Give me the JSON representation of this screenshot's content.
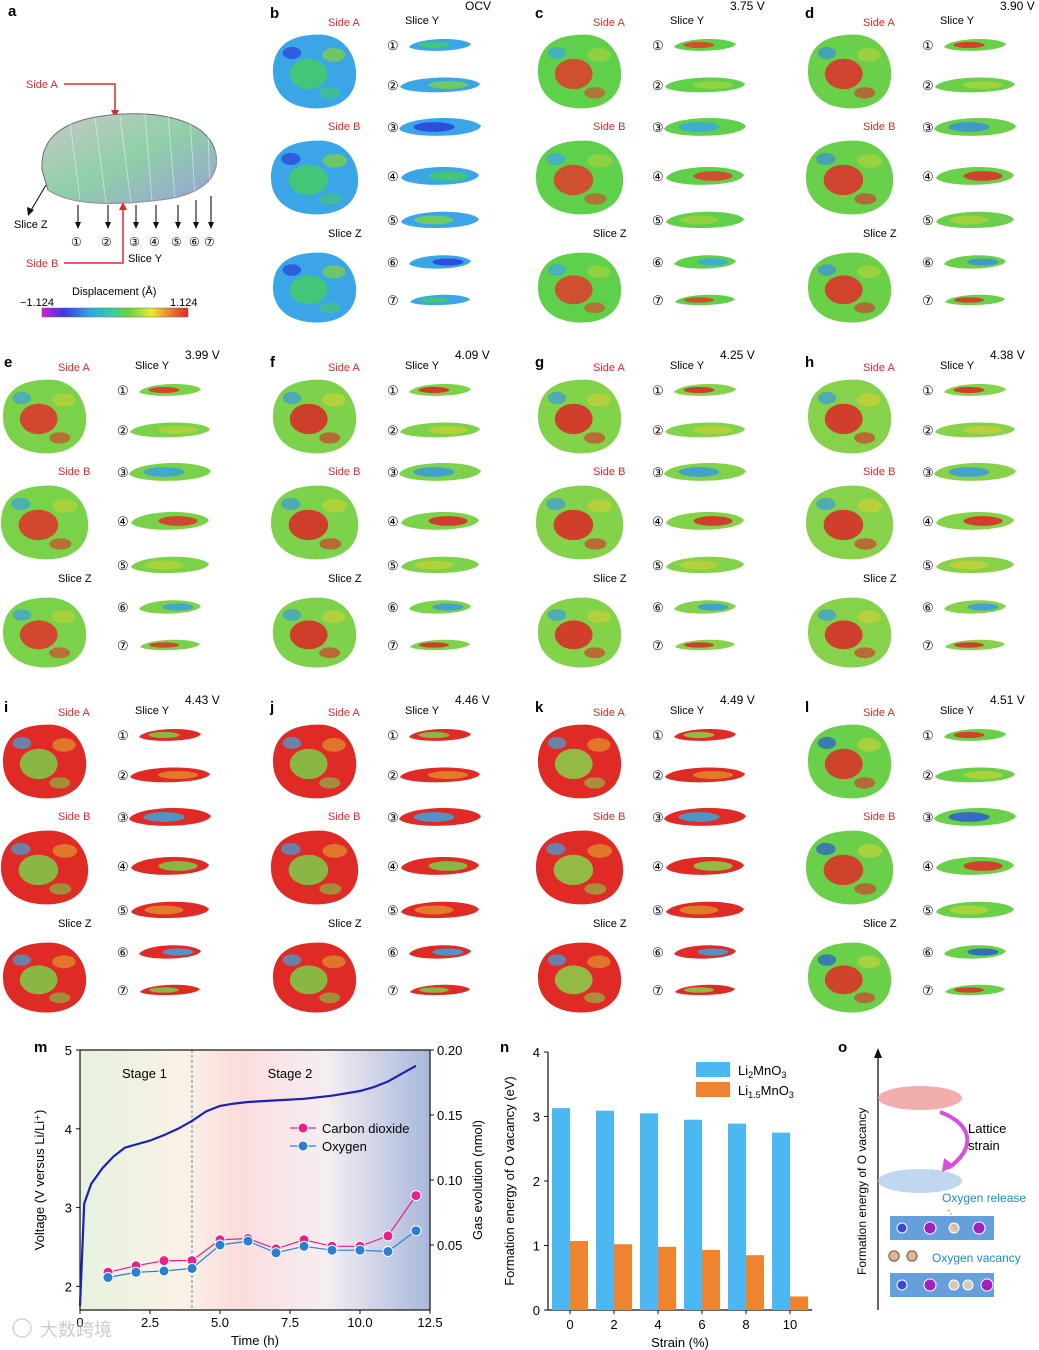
{
  "panel_a": {
    "letter": "a",
    "side_a": "Side A",
    "side_b": "Side B",
    "slice_z": "Slice Z",
    "slice_y": "Slice Y",
    "slice_numbers": [
      "①",
      "②",
      "③",
      "④",
      "⑤",
      "⑥",
      "⑦"
    ],
    "colorbar_title": "Displacement (Å)",
    "colorbar_min": "−1.124",
    "colorbar_max": "1.124",
    "colorbar_colors": [
      "#d81cd8",
      "#3a3adf",
      "#2fa3e8",
      "#35d0a0",
      "#6bd63a",
      "#e8e83a",
      "#f07a2a",
      "#e02a2a"
    ]
  },
  "panels": [
    {
      "letter": "b",
      "voltage": "OCV",
      "side_a": "Side A",
      "side_b": "Side B",
      "slice_z": "Slice Z",
      "slice_y": "Slice Y",
      "scheme": [
        "#3aa6e8",
        "#44cc66",
        "#7ad04a",
        "#2a40d8"
      ]
    },
    {
      "letter": "c",
      "voltage": "3.75 V",
      "side_a": "Side A",
      "side_b": "Side B",
      "slice_z": "Slice Z",
      "slice_y": "Slice Y",
      "scheme": [
        "#5fd04a",
        "#e23a2a",
        "#9ad23e",
        "#3aa6e8"
      ]
    },
    {
      "letter": "d",
      "voltage": "3.90 V",
      "side_a": "Side A",
      "side_b": "Side B",
      "slice_z": "Slice Z",
      "slice_y": "Slice Y",
      "scheme": [
        "#6ad04a",
        "#e02a2a",
        "#a6d23c",
        "#3a8fe0"
      ]
    },
    {
      "letter": "e",
      "voltage": "3.99 V",
      "side_a": "Side A",
      "side_b": "Side B",
      "slice_z": "Slice Z",
      "slice_y": "Slice Y",
      "scheme": [
        "#7ad24a",
        "#e0302a",
        "#b4d23a",
        "#3aa0e0"
      ]
    },
    {
      "letter": "f",
      "voltage": "4.09 V",
      "side_a": "Side A",
      "side_b": "Side B",
      "slice_z": "Slice Z",
      "slice_y": "Slice Y",
      "scheme": [
        "#7cd24a",
        "#dd2626",
        "#bcd23a",
        "#3a9ae0"
      ]
    },
    {
      "letter": "g",
      "voltage": "4.25 V",
      "side_a": "Side A",
      "side_b": "Side B",
      "slice_z": "Slice Z",
      "slice_y": "Slice Y",
      "scheme": [
        "#82d24a",
        "#dd2626",
        "#c0d03a",
        "#3a9ae0"
      ]
    },
    {
      "letter": "h",
      "voltage": "4.38 V",
      "side_a": "Side A",
      "side_b": "Side B",
      "slice_z": "Slice Z",
      "slice_y": "Slice Y",
      "scheme": [
        "#86d24a",
        "#dd2626",
        "#c6cf3a",
        "#3a9ae0"
      ]
    },
    {
      "letter": "i",
      "voltage": "4.43 V",
      "side_a": "Side A",
      "side_b": "Side B",
      "slice_z": "Slice Z",
      "slice_y": "Slice Y",
      "scheme": [
        "#e02a26",
        "#7ad04a",
        "#e08a2a",
        "#3aa6e0"
      ]
    },
    {
      "letter": "j",
      "voltage": "4.46 V",
      "side_a": "Side A",
      "side_b": "Side B",
      "slice_z": "Slice Z",
      "slice_y": "Slice Y",
      "scheme": [
        "#e02a26",
        "#7ad04a",
        "#e08a2a",
        "#3aa6e0"
      ]
    },
    {
      "letter": "k",
      "voltage": "4.49 V",
      "side_a": "Side A",
      "side_b": "Side B",
      "slice_z": "Slice Z",
      "slice_y": "Slice Y",
      "scheme": [
        "#e02a26",
        "#86d24a",
        "#e08a2a",
        "#3aa6e0"
      ]
    },
    {
      "letter": "l",
      "voltage": "4.51 V",
      "side_a": "Side A",
      "side_b": "Side B",
      "slice_z": "Slice Z",
      "slice_y": "Slice Y",
      "scheme": [
        "#6ad04a",
        "#e02a26",
        "#b4d23a",
        "#2a5ad8"
      ]
    }
  ],
  "slice_numbers": [
    "①",
    "②",
    "③",
    "④",
    "⑤",
    "⑥",
    "⑦"
  ],
  "chart_data": [
    {
      "panel": "m",
      "type": "line",
      "xlabel": "Time (h)",
      "ylabel": "Voltage (V versus Li/Li⁺)",
      "y2label": "Gas evolution (nmol)",
      "xlim": [
        0,
        12.5
      ],
      "ylim": [
        1.7,
        5
      ],
      "y2lim": [
        0.0,
        0.2
      ],
      "xticks": [
        "0",
        "2.5",
        "5.0",
        "7.5",
        "10.0",
        "12.5"
      ],
      "yticks": [
        "2",
        "3",
        "4",
        "5"
      ],
      "y2ticks": [
        "0.05",
        "0.10",
        "0.15",
        "0.20"
      ],
      "stage_labels": [
        "Stage 1",
        "Stage 2"
      ],
      "stage_boundary": 4.0,
      "voltage_curve": {
        "x": [
          0,
          0.15,
          0.4,
          0.8,
          1.2,
          1.6,
          2.0,
          2.5,
          3.0,
          3.5,
          4.0,
          4.5,
          5.0,
          5.5,
          6.0,
          7.0,
          8.0,
          9.0,
          10.0,
          10.5,
          11.0,
          11.5,
          12.0
        ],
        "y": [
          1.75,
          3.05,
          3.3,
          3.5,
          3.65,
          3.76,
          3.8,
          3.85,
          3.92,
          4.0,
          4.1,
          4.22,
          4.29,
          4.32,
          4.34,
          4.36,
          4.38,
          4.42,
          4.48,
          4.53,
          4.6,
          4.7,
          4.8
        ]
      },
      "series": [
        {
          "name": "Carbon dioxide",
          "color": "#e8208a",
          "x": [
            1,
            2,
            3,
            4,
            5,
            6,
            7,
            8,
            9,
            10,
            11,
            12
          ],
          "values": [
            0.029,
            0.034,
            0.038,
            0.038,
            0.054,
            0.055,
            0.047,
            0.054,
            0.049,
            0.049,
            0.057,
            0.088
          ]
        },
        {
          "name": "Oxygen",
          "color": "#2a7fd4",
          "x": [
            1,
            2,
            3,
            4,
            5,
            6,
            7,
            8,
            9,
            10,
            11,
            12
          ],
          "values": [
            0.025,
            0.029,
            0.03,
            0.032,
            0.05,
            0.053,
            0.044,
            0.049,
            0.046,
            0.046,
            0.045,
            0.061
          ]
        }
      ],
      "voltage_color": "#1a22b8"
    },
    {
      "panel": "n",
      "type": "bar",
      "xlabel": "Strain (%)",
      "ylabel": "Formation energy of O vacancy (eV)",
      "categories": [
        "0",
        "2",
        "4",
        "6",
        "8",
        "10"
      ],
      "ylim": [
        0,
        4
      ],
      "yticks": [
        "0",
        "1",
        "2",
        "3",
        "4"
      ],
      "series": [
        {
          "name": "Li2MnO3",
          "color": "#4cb8f2",
          "values": [
            3.13,
            3.09,
            3.05,
            2.95,
            2.89,
            2.75
          ]
        },
        {
          "name": "Li1.5MnO3",
          "color": "#ee8430",
          "values": [
            1.07,
            1.02,
            0.98,
            0.93,
            0.85,
            0.21
          ]
        }
      ]
    }
  ],
  "panel_m_letter": "m",
  "panel_n_letter": "n",
  "legend_n": {
    "main_1": "Li",
    "sub_1": "2",
    "main_1b": "MnO",
    "sub_1b": "3",
    "main_2": "Li",
    "sub_2": "1.5",
    "main_2b": "MnO",
    "sub_2b": "3"
  },
  "panel_o": {
    "letter": "o",
    "ylabel": "Formation energy of O vacancy",
    "arrow_label_1": "Lattice",
    "arrow_label_2": "strain",
    "oxygen_release": "Oxygen release",
    "oxygen_vacancy": "Oxygen vacancy"
  },
  "watermark": "大数跨境"
}
